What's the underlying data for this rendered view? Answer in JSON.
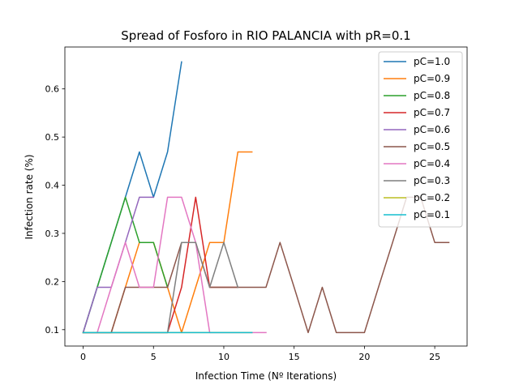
{
  "chart_data": {
    "type": "line",
    "title": "Spread of Fosforo in RIO PALANCIA with pR=0.1",
    "xlabel": "Infection Time (Nº Iterations)",
    "ylabel": "Infection rate (%)",
    "xlim": [
      -1.3,
      27.3
    ],
    "ylim": [
      0.066,
      0.687
    ],
    "xticks": [
      0,
      5,
      10,
      15,
      20,
      25
    ],
    "yticks": [
      0.1,
      0.2,
      0.3,
      0.4,
      0.5,
      0.6
    ],
    "grid": false,
    "legend_position": "top-right",
    "series": [
      {
        "name": "pC=1.0",
        "color": "#1f77b4",
        "x": [
          0,
          1,
          2,
          3,
          4,
          5,
          6,
          7
        ],
        "y": [
          0.094,
          0.188,
          0.281,
          0.375,
          0.469,
          0.375,
          0.469,
          0.656
        ]
      },
      {
        "name": "pC=0.9",
        "color": "#ff7f0e",
        "x": [
          0,
          1,
          2,
          3,
          4,
          5,
          6,
          7,
          8,
          9,
          10,
          11,
          12
        ],
        "y": [
          0.094,
          0.094,
          0.094,
          0.188,
          0.281,
          0.281,
          0.188,
          0.094,
          0.188,
          0.281,
          0.281,
          0.469,
          0.469
        ]
      },
      {
        "name": "pC=0.8",
        "color": "#2ca02c",
        "x": [
          0,
          1,
          2,
          3,
          4,
          5,
          6
        ],
        "y": [
          0.094,
          0.188,
          0.281,
          0.375,
          0.281,
          0.281,
          0.188
        ]
      },
      {
        "name": "pC=0.7",
        "color": "#d62728",
        "x": [
          0,
          1,
          2,
          3,
          4,
          5,
          6,
          7,
          8,
          9,
          10,
          11
        ],
        "y": [
          0.094,
          0.094,
          0.094,
          0.094,
          0.094,
          0.094,
          0.094,
          0.188,
          0.375,
          0.188,
          0.188,
          0.188
        ]
      },
      {
        "name": "pC=0.6",
        "color": "#9467bd",
        "x": [
          0,
          1,
          2,
          3,
          4,
          5
        ],
        "y": [
          0.094,
          0.188,
          0.188,
          0.281,
          0.375,
          0.375
        ]
      },
      {
        "name": "pC=0.5",
        "color": "#8c564b",
        "x": [
          0,
          1,
          2,
          3,
          4,
          5,
          6,
          7,
          8,
          9,
          10,
          11,
          12,
          13,
          14,
          15,
          16,
          17,
          18,
          19,
          20,
          21,
          22,
          23,
          24,
          25,
          26
        ],
        "y": [
          0.094,
          0.094,
          0.094,
          0.188,
          0.188,
          0.188,
          0.188,
          0.281,
          0.281,
          0.188,
          0.188,
          0.188,
          0.188,
          0.188,
          0.281,
          0.188,
          0.094,
          0.188,
          0.094,
          0.094,
          0.094,
          0.188,
          0.281,
          0.375,
          0.375,
          0.281,
          0.281
        ]
      },
      {
        "name": "pC=0.4",
        "color": "#e377c2",
        "x": [
          0,
          1,
          2,
          3,
          4,
          5,
          6,
          7,
          8,
          9,
          10,
          11,
          12,
          13
        ],
        "y": [
          0.094,
          0.094,
          0.188,
          0.281,
          0.188,
          0.188,
          0.375,
          0.375,
          0.281,
          0.094,
          0.094,
          0.094,
          0.094,
          0.094
        ]
      },
      {
        "name": "pC=0.3",
        "color": "#7f7f7f",
        "x": [
          0,
          1,
          2,
          3,
          4,
          5,
          6,
          7,
          8,
          9,
          10,
          11
        ],
        "y": [
          0.094,
          0.094,
          0.094,
          0.094,
          0.094,
          0.094,
          0.094,
          0.281,
          0.281,
          0.188,
          0.281,
          0.188
        ]
      },
      {
        "name": "pC=0.2",
        "color": "#bcbd22",
        "x": [
          0,
          1,
          2,
          3,
          4,
          5,
          6,
          7,
          8,
          9,
          10,
          11,
          12
        ],
        "y": [
          0.094,
          0.094,
          0.094,
          0.094,
          0.094,
          0.094,
          0.094,
          0.094,
          0.094,
          0.094,
          0.094,
          0.094,
          0.094
        ]
      },
      {
        "name": "pC=0.1",
        "color": "#17becf",
        "x": [
          0,
          1,
          2,
          3,
          4,
          5,
          6,
          7,
          8,
          9,
          10,
          11,
          12
        ],
        "y": [
          0.094,
          0.094,
          0.094,
          0.094,
          0.094,
          0.094,
          0.094,
          0.094,
          0.094,
          0.094,
          0.094,
          0.094,
          0.094
        ]
      }
    ]
  }
}
